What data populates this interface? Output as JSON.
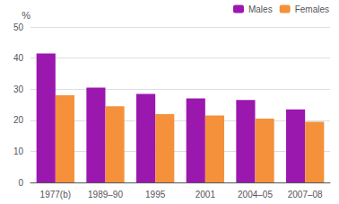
{
  "chart_data": {
    "type": "bar",
    "categories": [
      "1977(b)",
      "1989–90",
      "1995",
      "2001",
      "2004–05",
      "2007–08"
    ],
    "series": [
      {
        "name": "Males",
        "color": "#9B18AF",
        "values": [
          41.5,
          30.5,
          28.5,
          27.0,
          26.5,
          23.5
        ]
      },
      {
        "name": "Females",
        "color": "#F4913A",
        "values": [
          28.0,
          24.5,
          22.0,
          21.5,
          20.5,
          19.5
        ]
      }
    ],
    "ylabel": "%",
    "ylim": [
      0,
      50
    ],
    "yticks": [
      0,
      10,
      20,
      30,
      40,
      50
    ],
    "grid": true,
    "legend": "upper right"
  }
}
